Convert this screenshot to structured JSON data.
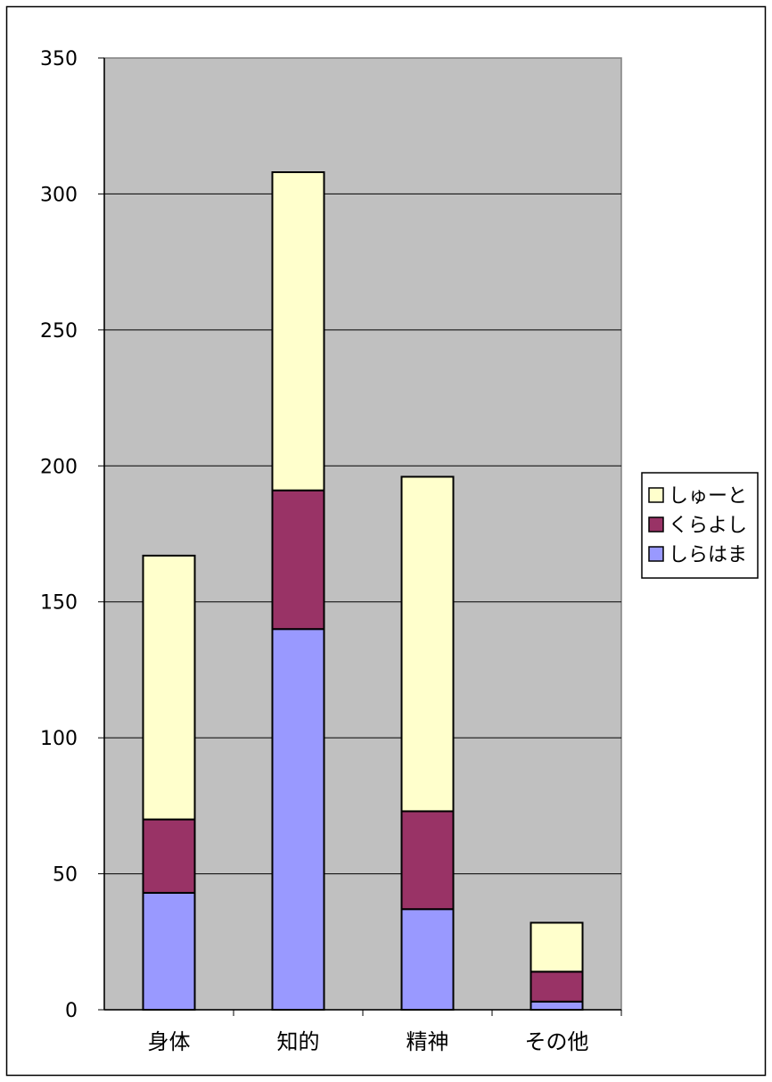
{
  "chart_data": {
    "type": "bar",
    "stacked": true,
    "categories": [
      "身体",
      "知的",
      "精神",
      "その他"
    ],
    "series": [
      {
        "name": "しらはま",
        "values": [
          43,
          140,
          37,
          3
        ],
        "color": "#9999ff"
      },
      {
        "name": "くらよし",
        "values": [
          27,
          51,
          36,
          11
        ],
        "color": "#993366"
      },
      {
        "name": "しゅーと",
        "values": [
          97,
          117,
          123,
          18
        ],
        "color": "#ffffcc"
      }
    ],
    "yticks": [
      "0",
      "50",
      "100",
      "150",
      "200",
      "250",
      "300",
      "350"
    ],
    "ylim": [
      0,
      350
    ],
    "legend_order": [
      "しゅーと",
      "くらよし",
      "しらはま"
    ],
    "grid": true,
    "legend_position": "right",
    "plot_background": "#c0c0c0"
  }
}
